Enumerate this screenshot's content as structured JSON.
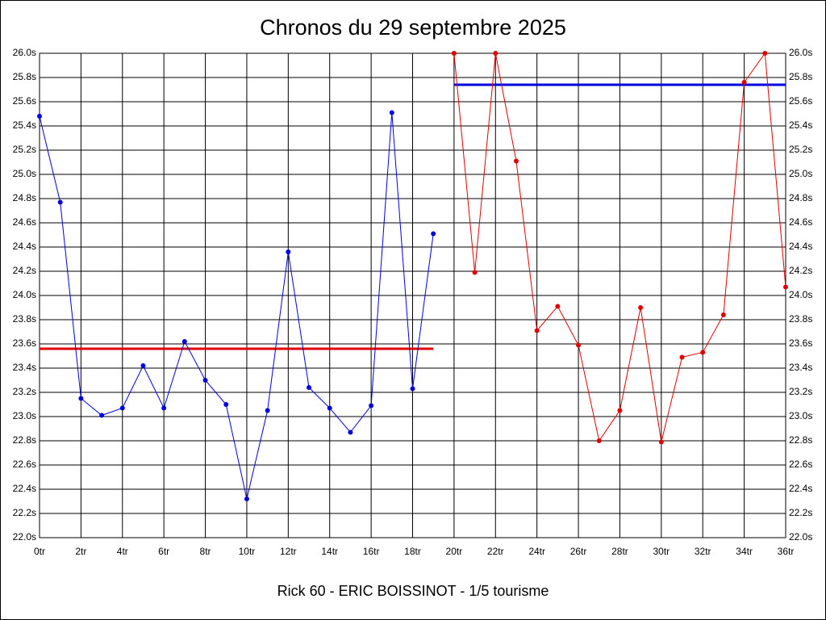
{
  "chart_data": {
    "type": "line",
    "title": "Chronos du 29 septembre 2025",
    "x_label": "Rick 60 - ERIC BOISSINOT - 1/5 tourisme",
    "xlim": [
      0,
      36
    ],
    "xticks": [
      {
        "value": 0,
        "label": "0tr"
      },
      {
        "value": 2,
        "label": "2tr"
      },
      {
        "value": 4,
        "label": "4tr"
      },
      {
        "value": 6,
        "label": "6tr"
      },
      {
        "value": 8,
        "label": "8tr"
      },
      {
        "value": 10,
        "label": "10tr"
      },
      {
        "value": 12,
        "label": "12tr"
      },
      {
        "value": 14,
        "label": "14tr"
      },
      {
        "value": 16,
        "label": "16tr"
      },
      {
        "value": 18,
        "label": "18tr"
      },
      {
        "value": 20,
        "label": "20tr"
      },
      {
        "value": 22,
        "label": "22tr"
      },
      {
        "value": 24,
        "label": "24tr"
      },
      {
        "value": 26,
        "label": "26tr"
      },
      {
        "value": 28,
        "label": "28tr"
      },
      {
        "value": 30,
        "label": "30tr"
      },
      {
        "value": 32,
        "label": "32tr"
      },
      {
        "value": 34,
        "label": "34tr"
      },
      {
        "value": 36,
        "label": "36tr"
      }
    ],
    "ylim": [
      22.0,
      26.0
    ],
    "yticks": [
      {
        "value": 22.0,
        "label": "22.0s"
      },
      {
        "value": 22.2,
        "label": "22.2s"
      },
      {
        "value": 22.4,
        "label": "22.4s"
      },
      {
        "value": 22.6,
        "label": "22.6s"
      },
      {
        "value": 22.8,
        "label": "22.8s"
      },
      {
        "value": 23.0,
        "label": "23.0s"
      },
      {
        "value": 23.2,
        "label": "23.2s"
      },
      {
        "value": 23.4,
        "label": "23.4s"
      },
      {
        "value": 23.6,
        "label": "23.6s"
      },
      {
        "value": 23.8,
        "label": "23.8s"
      },
      {
        "value": 24.0,
        "label": "24.0s"
      },
      {
        "value": 24.2,
        "label": "24.2s"
      },
      {
        "value": 24.4,
        "label": "24.4s"
      },
      {
        "value": 24.6,
        "label": "24.6s"
      },
      {
        "value": 24.8,
        "label": "24.8s"
      },
      {
        "value": 25.0,
        "label": "25.0s"
      },
      {
        "value": 25.2,
        "label": "25.2s"
      },
      {
        "value": 25.4,
        "label": "25.4s"
      },
      {
        "value": 25.6,
        "label": "25.6s"
      },
      {
        "value": 25.8,
        "label": "25.8s"
      },
      {
        "value": 26.0,
        "label": "26.0s"
      }
    ],
    "grid": true,
    "series": [
      {
        "color": "#0000e0",
        "x": [
          0,
          1,
          2,
          3,
          4,
          5,
          6,
          7,
          8,
          9,
          10,
          11,
          12,
          13,
          14,
          15,
          16,
          17,
          18,
          19
        ],
        "values": [
          25.48,
          24.77,
          23.15,
          23.01,
          23.07,
          23.42,
          23.07,
          23.62,
          23.3,
          23.1,
          22.32,
          23.05,
          24.36,
          23.24,
          23.07,
          22.87,
          23.09,
          25.51,
          23.23,
          24.51
        ]
      },
      {
        "color": "#e00000",
        "x": [
          20,
          21,
          22,
          23,
          24,
          25,
          26,
          27,
          28,
          29,
          30,
          31,
          32,
          33,
          34,
          35,
          36
        ],
        "values": [
          26.0,
          24.19,
          26.0,
          25.11,
          23.71,
          23.91,
          23.59,
          22.8,
          23.05,
          23.9,
          22.79,
          23.49,
          23.53,
          23.84,
          25.76,
          26.0,
          24.07
        ]
      }
    ],
    "reference_lines": [
      {
        "value": 23.56,
        "x": [
          0,
          19
        ],
        "color": "#e00000"
      },
      {
        "value": 25.74,
        "x": [
          20,
          36
        ],
        "color": "#0000e0"
      }
    ]
  }
}
